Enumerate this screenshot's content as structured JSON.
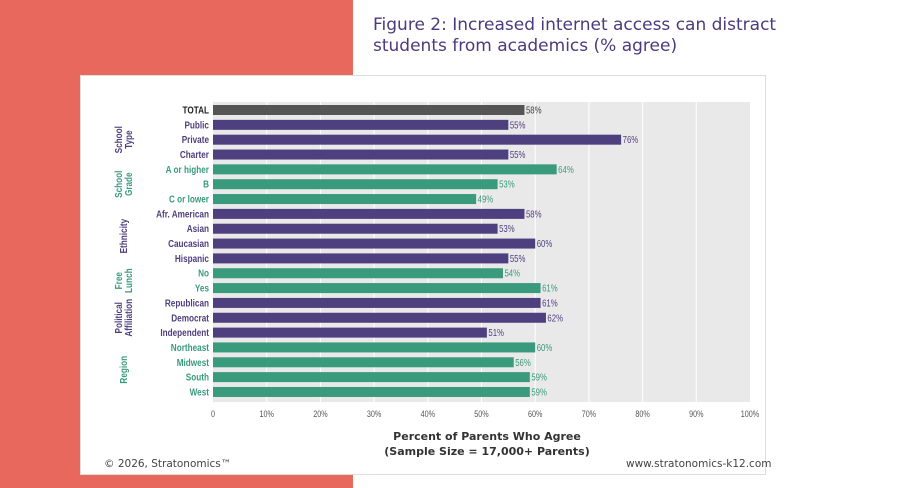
{
  "title_line1": "Figure 2: Increased internet access can distract",
  "title_line2": "students from academics (% agree)",
  "copyright": "© 2026, Stratonomics™",
  "website": "www.stratonomics-k12.com",
  "colors": {
    "background_strip": "#e8685e",
    "total": "#555555",
    "purple": "#4e3f7e",
    "green": "#3a9a7c",
    "plot_bg": "#e9e9e9"
  },
  "chart_data": {
    "type": "bar",
    "orientation": "horizontal",
    "xlabel_line1": "Percent of Parents Who Agree",
    "xlabel_line2": "(Sample Size = 17,000+ Parents)",
    "xlim": [
      0,
      100
    ],
    "xticks": [
      "0",
      "10%",
      "20%",
      "30%",
      "40%",
      "50%",
      "60%",
      "70%",
      "80%",
      "90%",
      "100%"
    ],
    "grid": true,
    "categories": [
      "TOTAL",
      "Public",
      "Private",
      "Charter",
      "A or higher",
      "B",
      "C or lower",
      "Afr. American",
      "Asian",
      "Caucasian",
      "Hispanic",
      "No",
      "Yes",
      "Republican",
      "Democrat",
      "Independent",
      "Northeast",
      "Midwest",
      "South",
      "West"
    ],
    "values": [
      58,
      55,
      76,
      55,
      64,
      53,
      49,
      58,
      53,
      60,
      55,
      54,
      61,
      61,
      62,
      51,
      60,
      56,
      59,
      59
    ],
    "data_labels": [
      "58%",
      "55%",
      "76%",
      "55%",
      "64%",
      "53%",
      "49%",
      "58%",
      "53%",
      "60%",
      "55%",
      "54%",
      "61%",
      "61%",
      "62%",
      "51%",
      "60%",
      "56%",
      "59%",
      "59%"
    ],
    "color_groups": [
      "total",
      "purple",
      "purple",
      "purple",
      "green",
      "green",
      "green",
      "purple",
      "purple",
      "purple",
      "purple",
      "green",
      "green",
      "purple",
      "purple",
      "purple",
      "green",
      "green",
      "green",
      "green"
    ],
    "groups": [
      {
        "lines": [
          "School",
          "Type"
        ],
        "color": "purple",
        "rows": [
          1,
          3
        ]
      },
      {
        "lines": [
          "School",
          "Grade"
        ],
        "color": "green",
        "rows": [
          4,
          6
        ]
      },
      {
        "lines": [
          "Ethnicity"
        ],
        "color": "purple",
        "rows": [
          7,
          10
        ]
      },
      {
        "lines": [
          "Free",
          "Lunch"
        ],
        "color": "green",
        "rows": [
          11,
          12
        ]
      },
      {
        "lines": [
          "Political",
          "Affiliation"
        ],
        "color": "purple",
        "rows": [
          13,
          15
        ]
      },
      {
        "lines": [
          "Region"
        ],
        "color": "green",
        "rows": [
          16,
          19
        ]
      }
    ]
  }
}
